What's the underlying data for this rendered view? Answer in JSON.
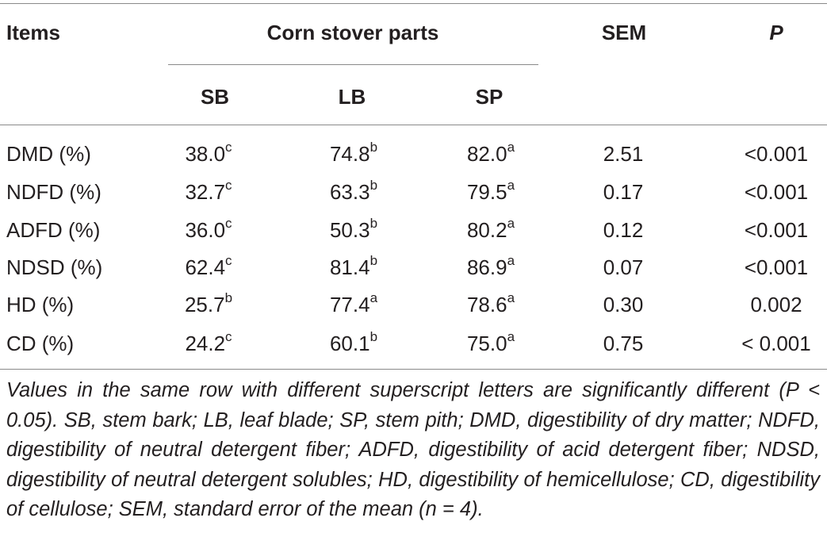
{
  "table": {
    "headers": {
      "items": "Items",
      "group": "Corn stover parts",
      "sem": "SEM",
      "p": "P",
      "sub": [
        "SB",
        "LB",
        "SP"
      ]
    },
    "rows": [
      {
        "item": "DMD (%)",
        "sb": "38.0",
        "sb_sup": "c",
        "lb": "74.8",
        "lb_sup": "b",
        "sp": "82.0",
        "sp_sup": "a",
        "sem": "2.51",
        "p": "<0.001"
      },
      {
        "item": "NDFD (%)",
        "sb": "32.7",
        "sb_sup": "c",
        "lb": "63.3",
        "lb_sup": "b",
        "sp": "79.5",
        "sp_sup": "a",
        "sem": "0.17",
        "p": "<0.001"
      },
      {
        "item": "ADFD (%)",
        "sb": "36.0",
        "sb_sup": "c",
        "lb": "50.3",
        "lb_sup": "b",
        "sp": "80.2",
        "sp_sup": "a",
        "sem": "0.12",
        "p": "<0.001"
      },
      {
        "item": "NDSD (%)",
        "sb": "62.4",
        "sb_sup": "c",
        "lb": "81.4",
        "lb_sup": "b",
        "sp": "86.9",
        "sp_sup": "a",
        "sem": "0.07",
        "p": "<0.001"
      },
      {
        "item": "HD (%)",
        "sb": "25.7",
        "sb_sup": "b",
        "lb": "77.4",
        "lb_sup": "a",
        "sp": "78.6",
        "sp_sup": "a",
        "sem": "0.30",
        "p": "0.002"
      },
      {
        "item": "CD (%)",
        "sb": "24.2",
        "sb_sup": "c",
        "lb": "60.1",
        "lb_sup": "b",
        "sp": "75.0",
        "sp_sup": "a",
        "sem": "0.75",
        "p": "< 0.001"
      }
    ]
  },
  "footnote": "Values in the same row with different superscript letters are significantly different (P < 0.05). SB, stem bark; LB, leaf blade; SP, stem pith; DMD, digestibility of dry matter; NDFD, digestibility of neutral detergent fiber; ADFD, digestibility of acid detergent fiber; NDSD, digestibility of neutral detergent solubles; HD, digestibility of hemicellulose; CD, digestibility of cellulose; SEM, standard error of the mean (n = 4)."
}
